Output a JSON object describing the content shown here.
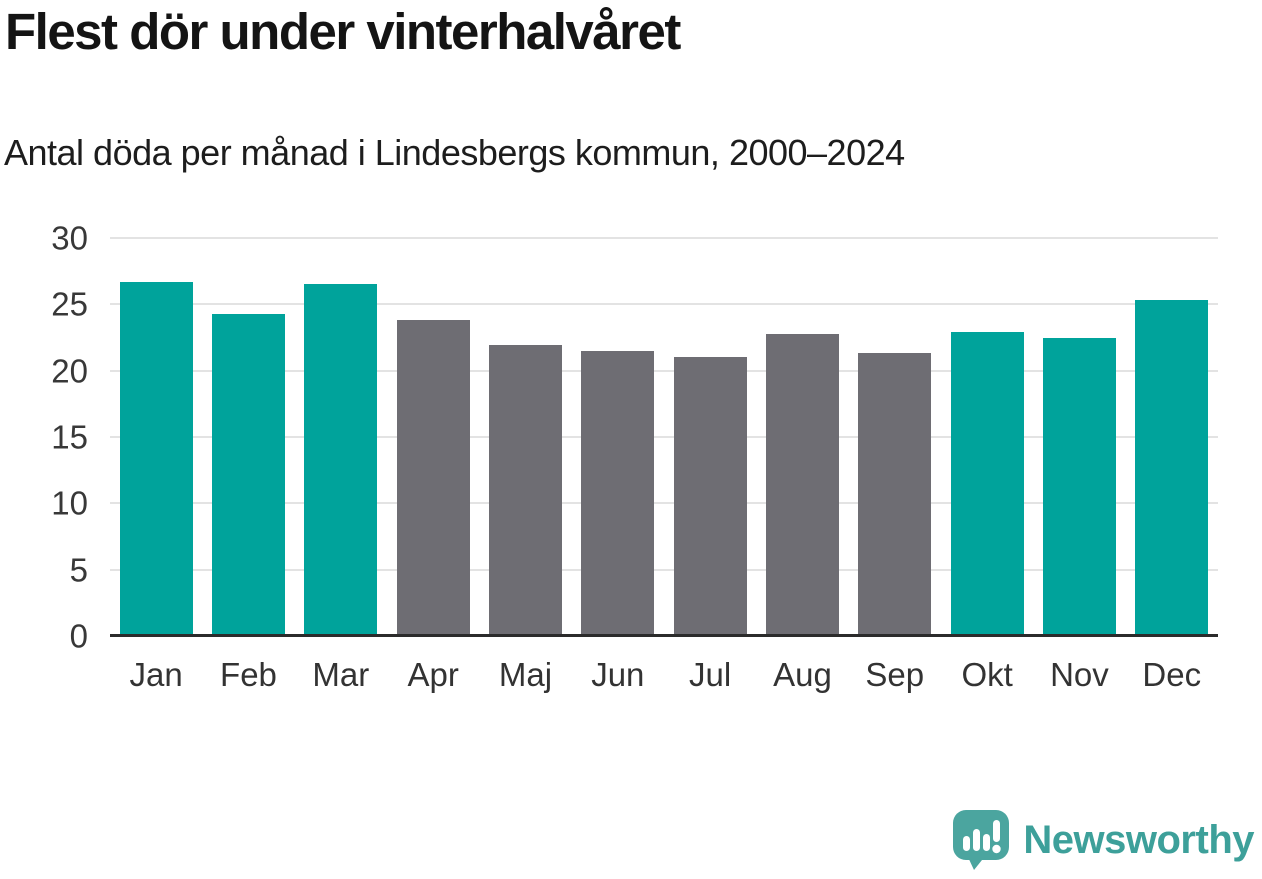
{
  "header": {
    "title": "Flest dör under vinterhalvåret",
    "subtitle": "Antal döda per månad i Lindesbergs kommun, 2000–2024"
  },
  "chart_data": {
    "type": "bar",
    "title": "Flest dör under vinterhalvåret",
    "subtitle": "Antal döda per månad i Lindesbergs kommun, 2000–2024",
    "categories": [
      "Jan",
      "Feb",
      "Mar",
      "Apr",
      "Maj",
      "Jun",
      "Jul",
      "Aug",
      "Sep",
      "Okt",
      "Nov",
      "Dec"
    ],
    "values": [
      26.7,
      24.3,
      26.5,
      23.8,
      21.9,
      21.5,
      21.0,
      22.8,
      21.3,
      22.9,
      22.5,
      25.3
    ],
    "highlighted": [
      true,
      true,
      true,
      false,
      false,
      false,
      false,
      false,
      false,
      true,
      true,
      true
    ],
    "xlabel": "",
    "ylabel": "",
    "ylim": [
      0,
      30
    ],
    "yticks": [
      0,
      5,
      10,
      15,
      20,
      25,
      30
    ],
    "grid": true,
    "legend": "none",
    "colors": {
      "highlight": "#00a39b",
      "muted": "#6e6d73",
      "gridline": "#e3e3e3",
      "axis": "#2b2b2b",
      "tick_text": "#383838"
    }
  },
  "footer": {
    "brand": "Newsworthy",
    "brand_color": "#3da09a",
    "logo_color": "#4ba59f"
  }
}
